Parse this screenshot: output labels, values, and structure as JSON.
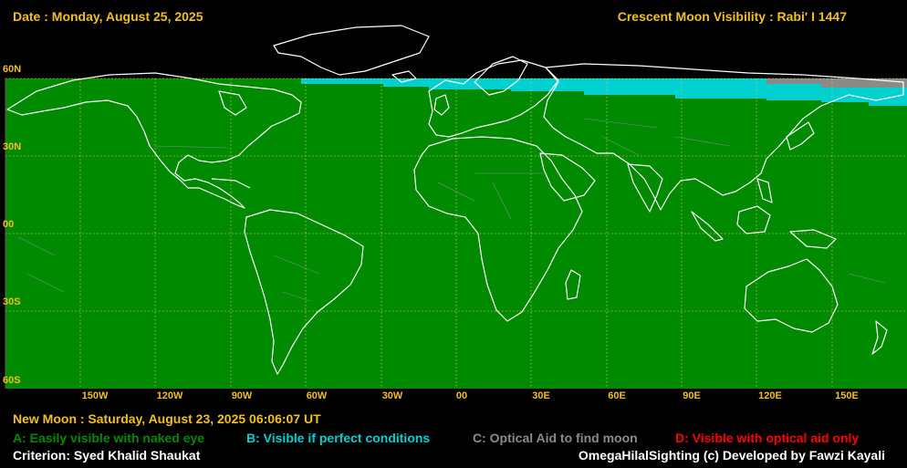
{
  "header": {
    "date": "Date : Monday, August 25, 2025",
    "title": "Crescent Moon Visibility : Rabi' I  1447"
  },
  "colors": {
    "header_text": "#f0c020",
    "zone_a": "#008a00",
    "zone_b": "#00d0d0",
    "zone_c": "#8a8a8a",
    "zone_d": "#ff0000",
    "coastline": "#ffffff",
    "gridline": "#d8d840",
    "label_text": "#f0c020",
    "white_text": "#ffffff"
  },
  "axes": {
    "lat_labels": [
      "60N",
      "30N",
      "00",
      "30S",
      "60S"
    ],
    "lon_labels": [
      "150W",
      "120W",
      "90W",
      "60W",
      "30W",
      "00",
      "30E",
      "60E",
      "90E",
      "120E",
      "150E"
    ]
  },
  "new_moon": "New Moon : Saturday, August 23, 2025  06:06:07  UT",
  "legend": [
    {
      "key": "a",
      "label": "A: Easily visible with naked eye",
      "color": "#008a00"
    },
    {
      "key": "b",
      "label": "B: Visible if perfect conditions",
      "color": "#00d0d0"
    },
    {
      "key": "c",
      "label": "C: Optical Aid to find moon",
      "color": "#8a8a8a"
    },
    {
      "key": "d",
      "label": "D: Visible with optical aid only",
      "color": "#ff0000"
    }
  ],
  "criterion": "Criterion: Syed Khalid Shaukat",
  "credits": "OmegaHilalSighting  (c)  Developed by Fawzi Kayali"
}
